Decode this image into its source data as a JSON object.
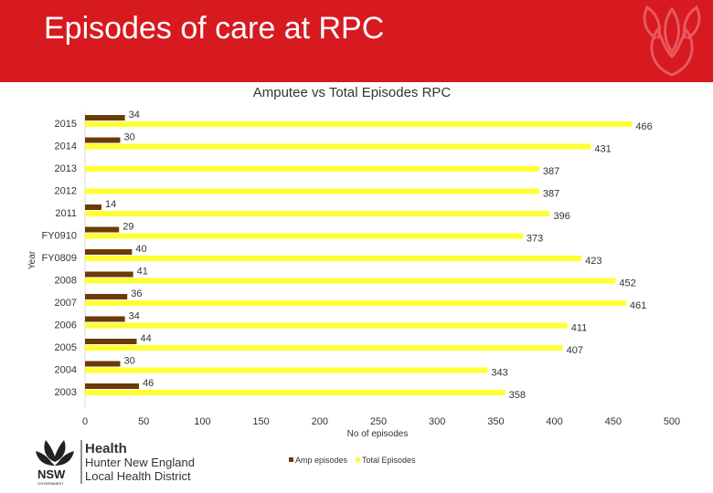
{
  "slide": {
    "title": "Episodes of care at RPC",
    "colors": {
      "banner": "#d71920",
      "amp": "#6b3a07",
      "total": "#ffff33"
    }
  },
  "logo": {
    "health": "Health",
    "line1": "Hunter New England",
    "line2": "Local Health District",
    "state": "NSW",
    "gov": "GOVERNMENT"
  },
  "chart_data": {
    "type": "bar",
    "orientation": "horizontal",
    "title": "Amputee vs Total Episodes RPC",
    "xlabel": "No of episodes",
    "ylabel": "Year",
    "xlim": [
      0,
      500
    ],
    "xticks": [
      0,
      50,
      100,
      150,
      200,
      250,
      300,
      350,
      400,
      450,
      500
    ],
    "categories": [
      "2015",
      "2014",
      "2013",
      "2012",
      "2011",
      "FY0910",
      "FY0809",
      "2008",
      "2007",
      "2006",
      "2005",
      "2004",
      "2003"
    ],
    "series": [
      {
        "name": "Amp episodes",
        "values": [
          34,
          30,
          null,
          null,
          14,
          29,
          40,
          41,
          36,
          34,
          44,
          30,
          46
        ]
      },
      {
        "name": "Total Episodes",
        "values": [
          466,
          431,
          387,
          387,
          396,
          373,
          423,
          452,
          461,
          411,
          407,
          343,
          358
        ]
      }
    ],
    "legend": "bottom"
  }
}
